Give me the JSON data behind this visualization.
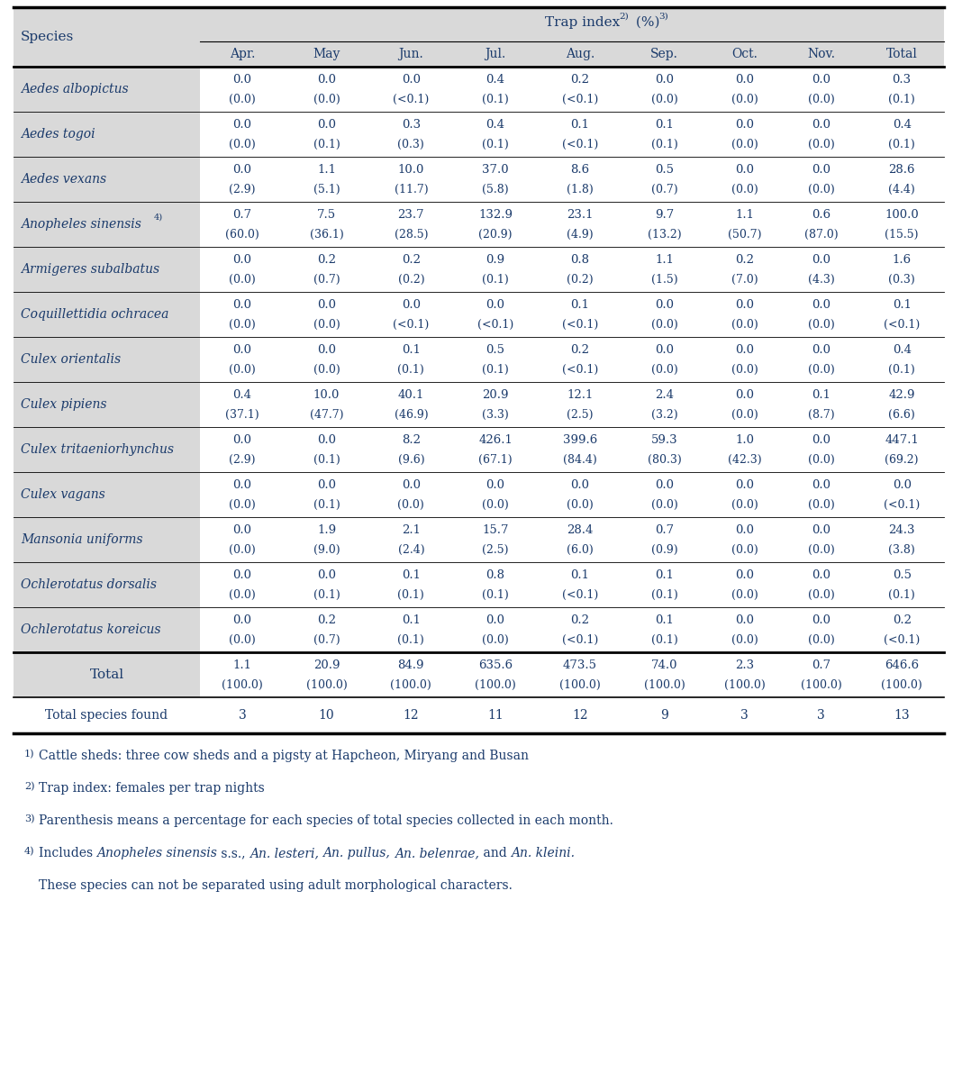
{
  "col_headers": [
    "Apr.",
    "May",
    "Jun.",
    "Jul.",
    "Aug.",
    "Sep.",
    "Oct.",
    "Nov.",
    "Total"
  ],
  "species": [
    "Aedes albopictus",
    "Aedes togoi",
    "Aedes vexans",
    "Anopheles sinensis",
    "Armigeres subalbatus",
    "Coquillettidia ochracea",
    "Culex orientalis",
    "Culex pipiens",
    "Culex tritaeniorhynchus",
    "Culex vagans",
    "Mansonia uniforms",
    "Ochlerotatus dorsalis",
    "Ochlerotatus koreicus"
  ],
  "data_top": [
    [
      "0.0",
      "0.0",
      "0.0",
      "0.4",
      "0.2",
      "0.0",
      "0.0",
      "0.0",
      "0.3"
    ],
    [
      "0.0",
      "0.0",
      "0.3",
      "0.4",
      "0.1",
      "0.1",
      "0.0",
      "0.0",
      "0.4"
    ],
    [
      "0.0",
      "1.1",
      "10.0",
      "37.0",
      "8.6",
      "0.5",
      "0.0",
      "0.0",
      "28.6"
    ],
    [
      "0.7",
      "7.5",
      "23.7",
      "132.9",
      "23.1",
      "9.7",
      "1.1",
      "0.6",
      "100.0"
    ],
    [
      "0.0",
      "0.2",
      "0.2",
      "0.9",
      "0.8",
      "1.1",
      "0.2",
      "0.0",
      "1.6"
    ],
    [
      "0.0",
      "0.0",
      "0.0",
      "0.0",
      "0.1",
      "0.0",
      "0.0",
      "0.0",
      "0.1"
    ],
    [
      "0.0",
      "0.0",
      "0.1",
      "0.5",
      "0.2",
      "0.0",
      "0.0",
      "0.0",
      "0.4"
    ],
    [
      "0.4",
      "10.0",
      "40.1",
      "20.9",
      "12.1",
      "2.4",
      "0.0",
      "0.1",
      "42.9"
    ],
    [
      "0.0",
      "0.0",
      "8.2",
      "426.1",
      "399.6",
      "59.3",
      "1.0",
      "0.0",
      "447.1"
    ],
    [
      "0.0",
      "0.0",
      "0.0",
      "0.0",
      "0.0",
      "0.0",
      "0.0",
      "0.0",
      "0.0"
    ],
    [
      "0.0",
      "1.9",
      "2.1",
      "15.7",
      "28.4",
      "0.7",
      "0.0",
      "0.0",
      "24.3"
    ],
    [
      "0.0",
      "0.0",
      "0.1",
      "0.8",
      "0.1",
      "0.1",
      "0.0",
      "0.0",
      "0.5"
    ],
    [
      "0.0",
      "0.2",
      "0.1",
      "0.0",
      "0.2",
      "0.1",
      "0.0",
      "0.0",
      "0.2"
    ]
  ],
  "data_bottom": [
    [
      "(0.0)",
      "(0.0)",
      "(<0.1)",
      "(0.1)",
      "(<0.1)",
      "(0.0)",
      "(0.0)",
      "(0.0)",
      "(0.1)"
    ],
    [
      "(0.0)",
      "(0.1)",
      "(0.3)",
      "(0.1)",
      "(<0.1)",
      "(0.1)",
      "(0.0)",
      "(0.0)",
      "(0.1)"
    ],
    [
      "(2.9)",
      "(5.1)",
      "(11.7)",
      "(5.8)",
      "(1.8)",
      "(0.7)",
      "(0.0)",
      "(0.0)",
      "(4.4)"
    ],
    [
      "(60.0)",
      "(36.1)",
      "(28.5)",
      "(20.9)",
      "(4.9)",
      "(13.2)",
      "(50.7)",
      "(87.0)",
      "(15.5)"
    ],
    [
      "(0.0)",
      "(0.7)",
      "(0.2)",
      "(0.1)",
      "(0.2)",
      "(1.5)",
      "(7.0)",
      "(4.3)",
      "(0.3)"
    ],
    [
      "(0.0)",
      "(0.0)",
      "(<0.1)",
      "(<0.1)",
      "(<0.1)",
      "(0.0)",
      "(0.0)",
      "(0.0)",
      "(<0.1)"
    ],
    [
      "(0.0)",
      "(0.0)",
      "(0.1)",
      "(0.1)",
      "(<0.1)",
      "(0.0)",
      "(0.0)",
      "(0.0)",
      "(0.1)"
    ],
    [
      "(37.1)",
      "(47.7)",
      "(46.9)",
      "(3.3)",
      "(2.5)",
      "(3.2)",
      "(0.0)",
      "(8.7)",
      "(6.6)"
    ],
    [
      "(2.9)",
      "(0.1)",
      "(9.6)",
      "(67.1)",
      "(84.4)",
      "(80.3)",
      "(42.3)",
      "(0.0)",
      "(69.2)"
    ],
    [
      "(0.0)",
      "(0.1)",
      "(0.0)",
      "(0.0)",
      "(0.0)",
      "(0.0)",
      "(0.0)",
      "(0.0)",
      "(<0.1)"
    ],
    [
      "(0.0)",
      "(9.0)",
      "(2.4)",
      "(2.5)",
      "(6.0)",
      "(0.9)",
      "(0.0)",
      "(0.0)",
      "(3.8)"
    ],
    [
      "(0.0)",
      "(0.1)",
      "(0.1)",
      "(0.1)",
      "(<0.1)",
      "(0.1)",
      "(0.0)",
      "(0.0)",
      "(0.1)"
    ],
    [
      "(0.0)",
      "(0.7)",
      "(0.1)",
      "(0.0)",
      "(<0.1)",
      "(0.1)",
      "(0.0)",
      "(0.0)",
      "(<0.1)"
    ]
  ],
  "total_top": [
    "1.1",
    "20.9",
    "84.9",
    "635.6",
    "473.5",
    "74.0",
    "2.3",
    "0.7",
    "646.6"
  ],
  "total_bottom": [
    "(100.0)",
    "(100.0)",
    "(100.0)",
    "(100.0)",
    "(100.0)",
    "(100.0)",
    "(100.0)",
    "(100.0)",
    "(100.0)"
  ],
  "total_species": [
    "3",
    "10",
    "12",
    "11",
    "12",
    "9",
    "3",
    "3",
    "13"
  ],
  "bg_color_light": "#d9d9d9",
  "bg_color_white": "#ffffff",
  "text_color": "#1a3a6b"
}
